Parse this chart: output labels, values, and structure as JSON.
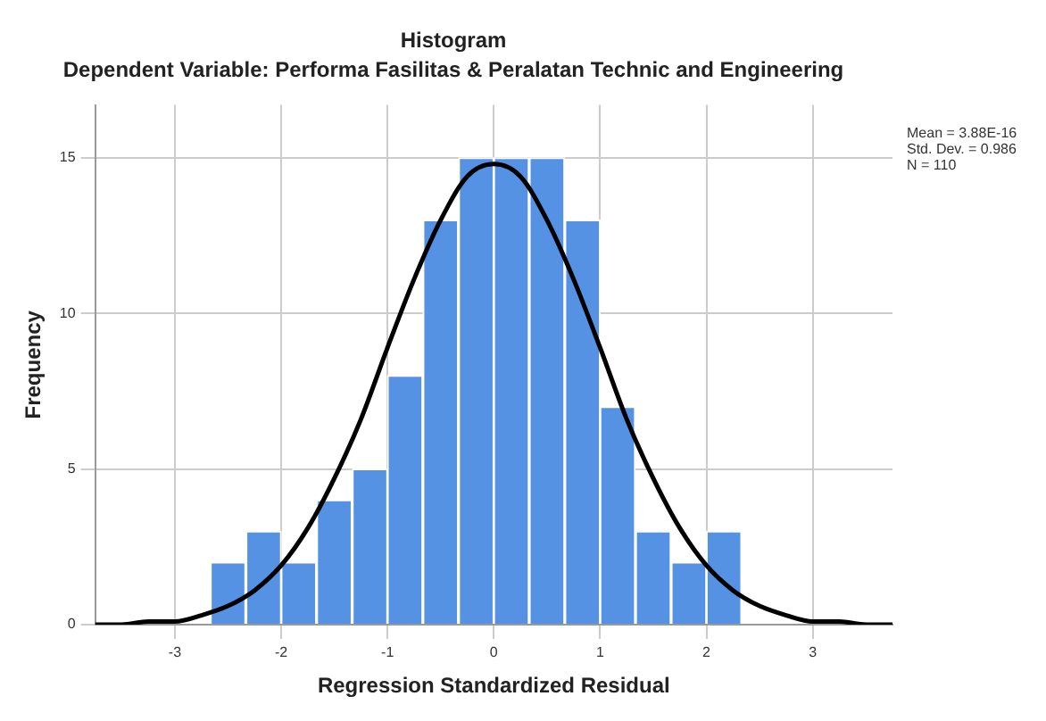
{
  "chart_data": {
    "type": "histogram",
    "title": "Histogram",
    "subtitle": "Dependent Variable: Performa Fasilitas & Peralatan Technic and Engineering",
    "xlabel": "Regression Standardized Residual",
    "ylabel": "Frequency",
    "bins": [
      -2.67,
      -2.33,
      -2.0,
      -1.67,
      -1.33,
      -1.0,
      -0.67,
      -0.33,
      0,
      0.33,
      0.67,
      1.0,
      1.33,
      1.67,
      2.0,
      2.33
    ],
    "values": [
      2,
      3,
      2,
      4,
      5,
      8,
      13,
      15,
      15,
      15,
      13,
      7,
      3,
      2,
      3
    ],
    "color": "#5592e4",
    "series": [
      {
        "type": "line",
        "color": "#000000",
        "x": [
          -3.75,
          -3.5,
          -3.25,
          -3,
          -2.75,
          -2.5,
          -2.25,
          -2,
          -1.75,
          -1.5,
          -1.25,
          -1,
          -0.75,
          -0.5,
          -0.25,
          0,
          0.25,
          0.5,
          0.75,
          1,
          1.25,
          1.5,
          1.75,
          2,
          2.25,
          2.5,
          2.75,
          3,
          3.25,
          3.5,
          3.75
        ],
        "values": [
          0,
          0,
          0.1,
          0.1,
          0.3,
          0.6,
          1.1,
          1.9,
          3.1,
          4.7,
          6.6,
          8.9,
          11.1,
          13,
          14.4,
          14.8,
          14.4,
          13,
          11.1,
          8.9,
          6.6,
          4.7,
          3.1,
          1.9,
          1.1,
          0.6,
          0.3,
          0.1,
          0.1,
          0,
          0
        ]
      }
    ],
    "xlim": [
      -3.75,
      3.75
    ],
    "xticks": [
      -3,
      -2,
      -1,
      0,
      1,
      2,
      3
    ],
    "ylim": [
      0,
      16.7
    ],
    "yticks": [
      0,
      5,
      10,
      15
    ],
    "grid": true,
    "legend": false,
    "annotations": [
      "Mean = 3.88E-16",
      "Std. Dev. = 0.986",
      "N = 110"
    ]
  }
}
